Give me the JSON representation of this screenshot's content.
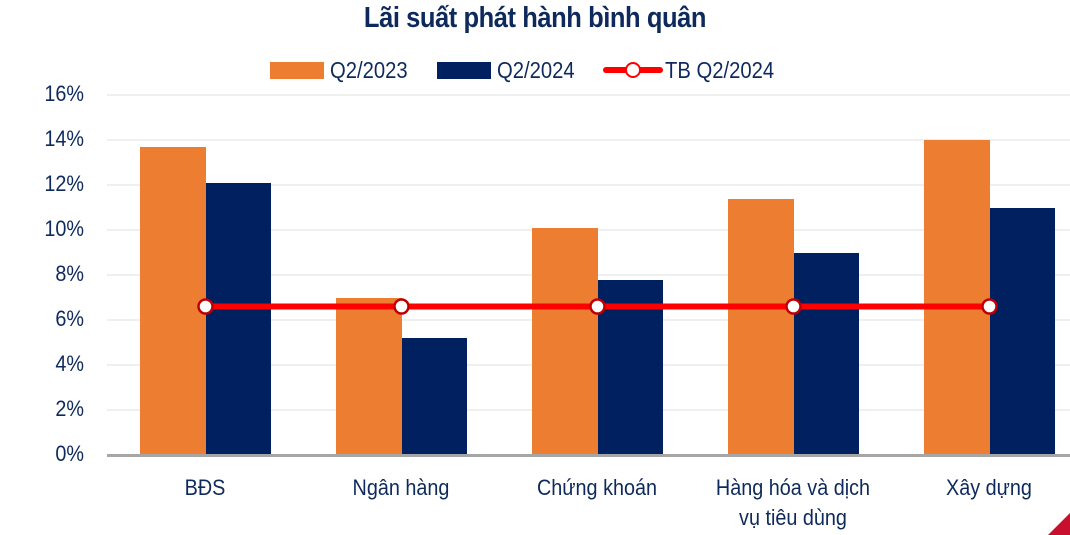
{
  "chart_data": {
    "type": "bar",
    "title": "Lãi suất phát hành bình quân",
    "xlabel": "",
    "ylabel": "",
    "categories": [
      "BĐS",
      "Ngân hàng",
      "Chứng khoán",
      "Hàng hóa và dịch vụ tiêu dùng",
      "Xây dựng"
    ],
    "series": [
      {
        "name": "Q2/2023",
        "type": "bar",
        "color": "#ED7D31",
        "values": [
          13.7,
          7.0,
          10.1,
          11.4,
          14.0
        ]
      },
      {
        "name": "Q2/2024",
        "type": "bar",
        "color": "#002060",
        "values": [
          12.1,
          5.2,
          7.8,
          9.0,
          11.0
        ]
      },
      {
        "name": "TB Q2/2024",
        "type": "line",
        "color": "#FF0000",
        "values": [
          6.6,
          6.6,
          6.6,
          6.6,
          6.6
        ]
      }
    ],
    "ylim": [
      0,
      16
    ],
    "yticks": [
      "0%",
      "2%",
      "4%",
      "6%",
      "8%",
      "10%",
      "12%",
      "14%",
      "16%"
    ],
    "grid": true,
    "legend_position": "top"
  },
  "title": "Lãi suất phát hành bình quân",
  "legend": [
    {
      "label": "Q2/2023",
      "color": "#ED7D31",
      "kind": "bar"
    },
    {
      "label": "Q2/2024",
      "color": "#002060",
      "kind": "bar"
    },
    {
      "label": "TB Q2/2024",
      "color": "#FF0000",
      "kind": "line-marker"
    }
  ],
  "x_labels": [
    [
      "BĐS"
    ],
    [
      "Ngân hàng"
    ],
    [
      "Chứng khoán"
    ],
    [
      "Hàng hóa và dịch",
      "vụ tiêu dùng"
    ],
    [
      "Xây dựng"
    ]
  ],
  "icons": {
    "corner": "brand-corner-triangle"
  }
}
